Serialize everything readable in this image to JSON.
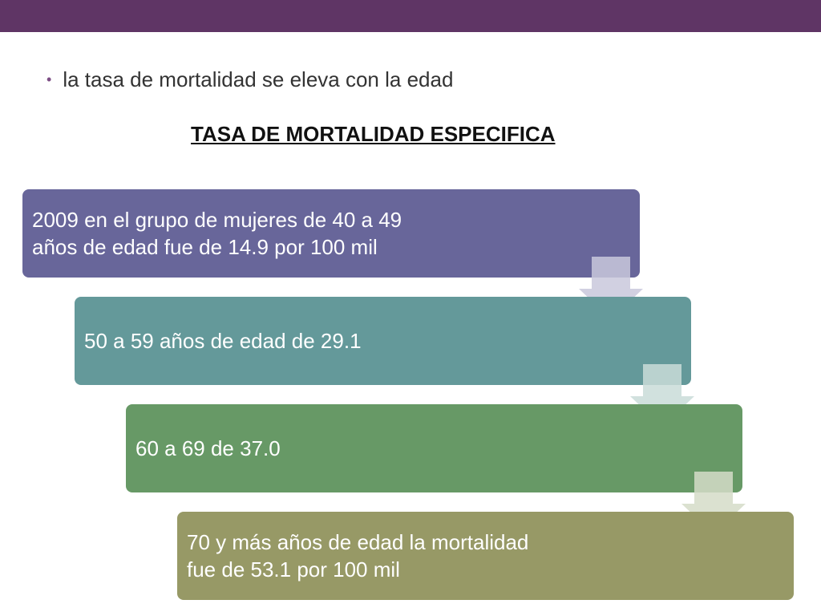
{
  "slide": {
    "bullet": "la tasa de mortalidad se eleva con la edad",
    "heading": "TASA DE MORTALIDAD ESPECIFICA"
  },
  "steps": [
    {
      "text": "2009 en el grupo de mujeres de 40 a 49\naños de edad fue de 14.9 por 100 mil",
      "color": "#68669a"
    },
    {
      "text": "50 a 59 años de edad de 29.1",
      "color": "#64999a"
    },
    {
      "text": "60 a 69 de 37.0",
      "color": "#679966"
    },
    {
      "text": "70 y más años de edad la mortalidad\nfue de 53.1 por 100 mil",
      "color": "#979966"
    }
  ],
  "colors": {
    "top_bar": "#5f3565",
    "bullet_dot": "#7c4d84"
  },
  "icons": {
    "connector": "down-arrow-icon"
  }
}
